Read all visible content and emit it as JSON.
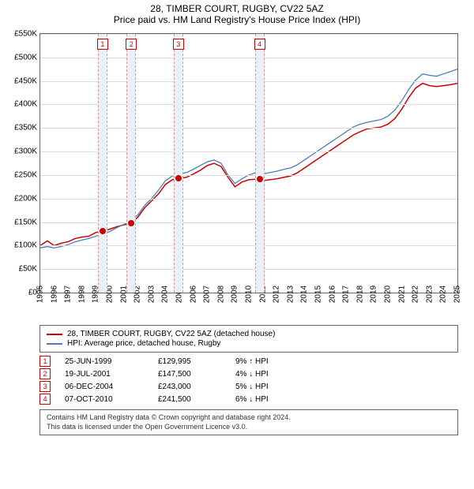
{
  "title1": "28, TIMBER COURT, RUGBY, CV22 5AZ",
  "title2": "Price paid vs. HM Land Registry's House Price Index (HPI)",
  "chart": {
    "type": "line",
    "background_color": "#ffffff",
    "grid_color": "#dddddd",
    "border_color": "#666666",
    "ylim": [
      0,
      550000
    ],
    "ytick_step": 50000,
    "y_labels": [
      "£0",
      "£50K",
      "£100K",
      "£150K",
      "£200K",
      "£250K",
      "£300K",
      "£350K",
      "£400K",
      "£450K",
      "£500K",
      "£550K"
    ],
    "xlim": [
      1995,
      2025
    ],
    "x_labels": [
      "1995",
      "1996",
      "1997",
      "1998",
      "1999",
      "2000",
      "2001",
      "2002",
      "2003",
      "2004",
      "2005",
      "2006",
      "2007",
      "2008",
      "2009",
      "2010",
      "2011",
      "2012",
      "2013",
      "2014",
      "2015",
      "2016",
      "2017",
      "2018",
      "2019",
      "2020",
      "2021",
      "2022",
      "2023",
      "2024",
      "2025"
    ],
    "series": [
      {
        "name": "28, TIMBER COURT, RUGBY, CV22 5AZ (detached house)",
        "color": "#cc0000",
        "width": 1.5,
        "points": [
          [
            1995,
            100000
          ],
          [
            1995.5,
            110000
          ],
          [
            1996,
            100000
          ],
          [
            1996.5,
            105000
          ],
          [
            1997,
            108000
          ],
          [
            1997.5,
            115000
          ],
          [
            1998,
            118000
          ],
          [
            1998.5,
            120000
          ],
          [
            1999,
            128000
          ],
          [
            1999.5,
            130000
          ],
          [
            2000,
            135000
          ],
          [
            2000.5,
            140000
          ],
          [
            2001,
            144000
          ],
          [
            2001.5,
            147000
          ],
          [
            2002,
            160000
          ],
          [
            2002.5,
            180000
          ],
          [
            2003,
            195000
          ],
          [
            2003.5,
            210000
          ],
          [
            2004,
            230000
          ],
          [
            2004.5,
            240000
          ],
          [
            2005,
            243000
          ],
          [
            2005.5,
            245000
          ],
          [
            2006,
            252000
          ],
          [
            2006.5,
            260000
          ],
          [
            2007,
            270000
          ],
          [
            2007.5,
            275000
          ],
          [
            2008,
            268000
          ],
          [
            2008.5,
            245000
          ],
          [
            2009,
            225000
          ],
          [
            2009.5,
            235000
          ],
          [
            2010,
            240000
          ],
          [
            2010.5,
            241000
          ],
          [
            2011,
            238000
          ],
          [
            2011.5,
            240000
          ],
          [
            2012,
            242000
          ],
          [
            2012.5,
            245000
          ],
          [
            2013,
            248000
          ],
          [
            2013.5,
            255000
          ],
          [
            2014,
            265000
          ],
          [
            2014.5,
            275000
          ],
          [
            2015,
            285000
          ],
          [
            2015.5,
            295000
          ],
          [
            2016,
            305000
          ],
          [
            2016.5,
            315000
          ],
          [
            2017,
            325000
          ],
          [
            2017.5,
            335000
          ],
          [
            2018,
            342000
          ],
          [
            2018.5,
            348000
          ],
          [
            2019,
            350000
          ],
          [
            2019.5,
            352000
          ],
          [
            2020,
            358000
          ],
          [
            2020.5,
            370000
          ],
          [
            2021,
            390000
          ],
          [
            2021.5,
            415000
          ],
          [
            2022,
            435000
          ],
          [
            2022.5,
            445000
          ],
          [
            2023,
            440000
          ],
          [
            2023.5,
            438000
          ],
          [
            2024,
            440000
          ],
          [
            2024.5,
            442000
          ],
          [
            2025,
            445000
          ]
        ]
      },
      {
        "name": "HPI: Average price, detached house, Rugby",
        "color": "#4a7ebb",
        "width": 1.3,
        "points": [
          [
            1995,
            95000
          ],
          [
            1995.5,
            98000
          ],
          [
            1996,
            95000
          ],
          [
            1996.5,
            98000
          ],
          [
            1997,
            102000
          ],
          [
            1997.5,
            108000
          ],
          [
            1998,
            112000
          ],
          [
            1998.5,
            115000
          ],
          [
            1999,
            120000
          ],
          [
            1999.5,
            125000
          ],
          [
            2000,
            130000
          ],
          [
            2000.5,
            138000
          ],
          [
            2001,
            145000
          ],
          [
            2001.5,
            152000
          ],
          [
            2002,
            165000
          ],
          [
            2002.5,
            185000
          ],
          [
            2003,
            200000
          ],
          [
            2003.5,
            218000
          ],
          [
            2004,
            238000
          ],
          [
            2004.5,
            248000
          ],
          [
            2005,
            252000
          ],
          [
            2005.5,
            255000
          ],
          [
            2006,
            262000
          ],
          [
            2006.5,
            270000
          ],
          [
            2007,
            278000
          ],
          [
            2007.5,
            282000
          ],
          [
            2008,
            275000
          ],
          [
            2008.5,
            250000
          ],
          [
            2009,
            232000
          ],
          [
            2009.5,
            242000
          ],
          [
            2010,
            250000
          ],
          [
            2010.5,
            255000
          ],
          [
            2011,
            252000
          ],
          [
            2011.5,
            255000
          ],
          [
            2012,
            258000
          ],
          [
            2012.5,
            262000
          ],
          [
            2013,
            265000
          ],
          [
            2013.5,
            272000
          ],
          [
            2014,
            282000
          ],
          [
            2014.5,
            292000
          ],
          [
            2015,
            302000
          ],
          [
            2015.5,
            312000
          ],
          [
            2016,
            322000
          ],
          [
            2016.5,
            332000
          ],
          [
            2017,
            342000
          ],
          [
            2017.5,
            352000
          ],
          [
            2018,
            358000
          ],
          [
            2018.5,
            362000
          ],
          [
            2019,
            365000
          ],
          [
            2019.5,
            368000
          ],
          [
            2020,
            375000
          ],
          [
            2020.5,
            388000
          ],
          [
            2021,
            408000
          ],
          [
            2021.5,
            432000
          ],
          [
            2022,
            452000
          ],
          [
            2022.5,
            465000
          ],
          [
            2023,
            462000
          ],
          [
            2023.5,
            460000
          ],
          [
            2024,
            465000
          ],
          [
            2024.5,
            470000
          ],
          [
            2025,
            475000
          ]
        ]
      }
    ],
    "markers": [
      {
        "n": "1",
        "x": 1999.48,
        "y": 129995
      },
      {
        "n": "2",
        "x": 2001.55,
        "y": 147500
      },
      {
        "n": "3",
        "x": 2004.93,
        "y": 243000
      },
      {
        "n": "4",
        "x": 2010.77,
        "y": 241500
      }
    ],
    "marker_box_color": "#cc0000",
    "marker_band_color": "#eaf0f8",
    "marker_band_border": "#dd9999",
    "point_color": "#cc0000"
  },
  "legend": {
    "items": [
      {
        "color": "#cc0000",
        "label": "28, TIMBER COURT, RUGBY, CV22 5AZ (detached house)"
      },
      {
        "color": "#4a7ebb",
        "label": "HPI: Average price, detached house, Rugby"
      }
    ]
  },
  "transactions": [
    {
      "n": "1",
      "date": "25-JUN-1999",
      "price": "£129,995",
      "diff": "9%",
      "dir": "up",
      "suffix": "HPI"
    },
    {
      "n": "2",
      "date": "19-JUL-2001",
      "price": "£147,500",
      "diff": "4%",
      "dir": "down",
      "suffix": "HPI"
    },
    {
      "n": "3",
      "date": "06-DEC-2004",
      "price": "£243,000",
      "diff": "5%",
      "dir": "down",
      "suffix": "HPI"
    },
    {
      "n": "4",
      "date": "07-OCT-2010",
      "price": "£241,500",
      "diff": "6%",
      "dir": "down",
      "suffix": "HPI"
    }
  ],
  "footer": {
    "line1": "Contains HM Land Registry data © Crown copyright and database right 2024.",
    "line2": "This data is licensed under the Open Government Licence v3.0."
  }
}
